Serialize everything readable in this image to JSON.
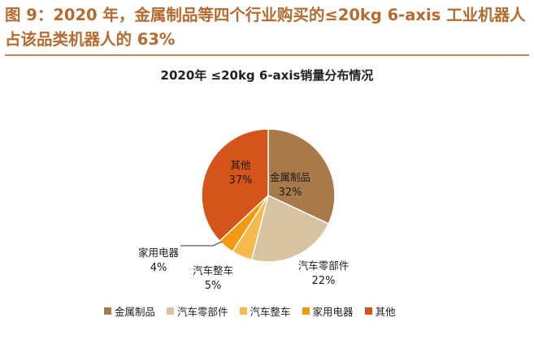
{
  "figure_title": "图 9：2020 年，金属制品等四个行业购买的≤20kg 6-axis 工业机器人占该品类机器人的 63%",
  "chart_data": {
    "type": "pie",
    "title": "2020年 ≤20kg 6-axis销量分布情况",
    "slices": [
      {
        "label": "金属制品",
        "value": 32,
        "display": "32%",
        "color": "#a87a4a"
      },
      {
        "label": "汽车零部件",
        "value": 22,
        "display": "22%",
        "color": "#d7c3a0"
      },
      {
        "label": "汽车整车",
        "value": 5,
        "display": "5%",
        "color": "#f5b94c"
      },
      {
        "label": "家用电器",
        "value": 4,
        "display": "4%",
        "color": "#f39a12"
      },
      {
        "label": "其他",
        "value": 37,
        "display": "37%",
        "color": "#d4541a"
      }
    ],
    "legend_position": "bottom"
  }
}
